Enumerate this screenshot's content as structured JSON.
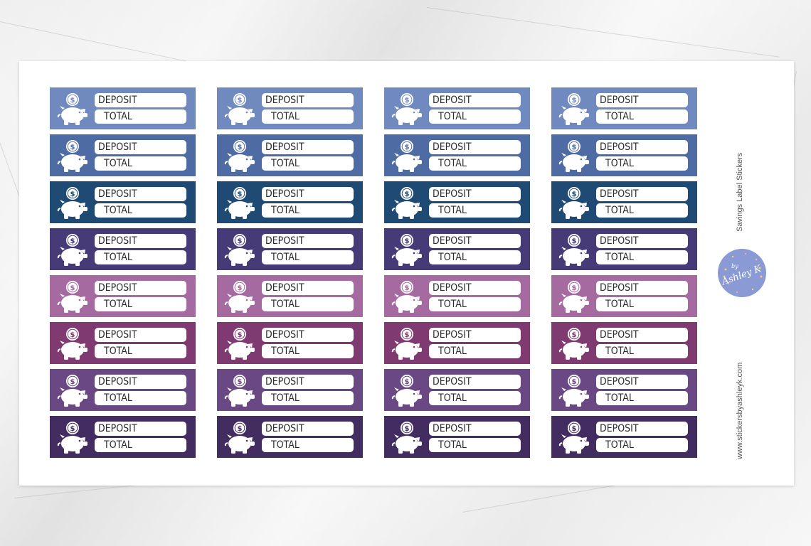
{
  "sheet": {
    "title": "Savings Label Stickers",
    "url": "www.stickersbyashleyk.com",
    "logo_text": "Ashley K",
    "logo_prefix": "by",
    "logo_color": "#8a9ad4"
  },
  "sticker_labels": {
    "deposit": "DEPOSIT",
    "total": "TOTAL"
  },
  "columns": 4,
  "rows": [
    {
      "color": "#7089bf",
      "coin_color": "#7089bf"
    },
    {
      "color": "#4e6ca3",
      "coin_color": "#4e6ca3"
    },
    {
      "color": "#1f4a73",
      "coin_color": "#1f4a73"
    },
    {
      "color": "#463b77",
      "coin_color": "#463b77"
    },
    {
      "color": "#a56aa0",
      "coin_color": "#a56aa0"
    },
    {
      "color": "#7e3a71",
      "coin_color": "#7e3a71"
    },
    {
      "color": "#6a4883",
      "coin_color": "#6a4883"
    },
    {
      "color": "#432c5f",
      "coin_color": "#432c5f"
    }
  ]
}
